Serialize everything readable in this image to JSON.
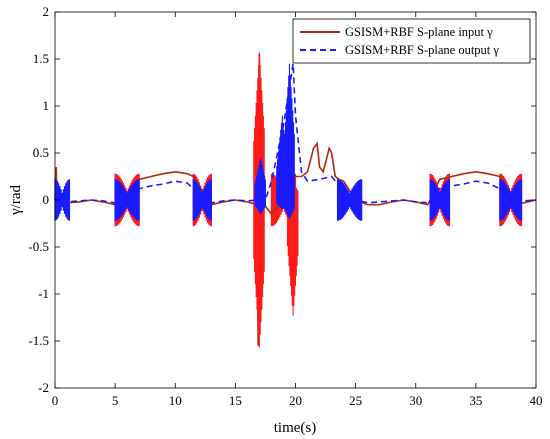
{
  "chart_data": {
    "type": "line",
    "xlabel": "time(s)",
    "ylabel": "γ/rad",
    "xlim": [
      0,
      40
    ],
    "ylim": [
      -2,
      2
    ],
    "x_ticks": [
      0,
      5,
      10,
      15,
      20,
      25,
      30,
      35,
      40
    ],
    "x_tick_labels": [
      "0",
      "5",
      "10",
      "15",
      "20",
      "25",
      "30",
      "35",
      "40"
    ],
    "y_ticks": [
      -2,
      -1.5,
      -1,
      -0.5,
      0,
      0.5,
      1,
      1.5,
      2
    ],
    "y_tick_labels": [
      "-2",
      "-1.5",
      "-1",
      "-0.5",
      "0",
      "0.5",
      "1",
      "1.5",
      "2"
    ],
    "grid": false,
    "legend_position": "top-right",
    "series": [
      {
        "name": "GSISM+RBF S-plane input γ",
        "color": "#b22a10",
        "chatter_color": "#ff1a1a",
        "style": "solid",
        "x": [
          0,
          0.1,
          0.2,
          0.4,
          1,
          2,
          3,
          4,
          5,
          5.5,
          7,
          8,
          9,
          10,
          11,
          11.5,
          13,
          14,
          15,
          16,
          16.8,
          16.9,
          17.0,
          17.2,
          17.4,
          18,
          19,
          19.5,
          20,
          20.5,
          21,
          21.5,
          21.8,
          22,
          22.3,
          22.8,
          23,
          23.3,
          23.6,
          24,
          25,
          26,
          27,
          28,
          29,
          30,
          31,
          32,
          33,
          34,
          35,
          36,
          37,
          38,
          39,
          40
        ],
        "y": [
          0,
          0.35,
          -0.2,
          0.05,
          -0.03,
          -0.02,
          0.0,
          -0.02,
          -0.05,
          -0.05,
          0.22,
          0.25,
          0.28,
          0.3,
          0.28,
          0.25,
          -0.05,
          -0.02,
          0.0,
          -0.02,
          -0.05,
          -1.55,
          1.55,
          -0.05,
          -0.05,
          -0.15,
          0.0,
          0.2,
          0.25,
          0.25,
          0.3,
          0.55,
          0.6,
          0.35,
          0.3,
          0.55,
          0.5,
          0.25,
          0.22,
          0.2,
          0.0,
          -0.05,
          -0.05,
          -0.02,
          0.0,
          -0.02,
          -0.05,
          0.22,
          0.25,
          0.28,
          0.3,
          0.28,
          0.25,
          -0.05,
          -0.03,
          0.0
        ],
        "chatter_bands": [
          [
            5,
            7
          ],
          [
            11.5,
            13
          ],
          [
            18,
            20
          ],
          [
            31.2,
            32.8
          ],
          [
            37,
            38.8
          ]
        ],
        "spikes": [
          {
            "x": 17.0,
            "min": -1.57,
            "max": 1.57
          },
          {
            "x": 19.8,
            "min": -1.23,
            "max": 0.2
          }
        ]
      },
      {
        "name": "GSISM+RBF S-plane output γ",
        "color": "#1a1aff",
        "style": "dashed",
        "x": [
          0,
          0.2,
          0.5,
          1,
          2,
          3,
          4,
          5,
          7,
          8,
          9,
          10,
          11,
          11.5,
          13,
          14,
          15,
          16,
          17,
          17.3,
          18,
          18.5,
          19,
          19.5,
          19.8,
          20,
          20.5,
          21,
          22,
          23,
          24,
          25,
          26,
          27,
          28,
          29,
          30,
          31,
          32,
          33,
          34,
          35,
          36,
          37,
          38,
          39,
          40
        ],
        "y": [
          0,
          0.1,
          0.0,
          -0.02,
          -0.01,
          0.0,
          -0.01,
          -0.03,
          0.12,
          0.15,
          0.17,
          0.2,
          0.18,
          0.12,
          -0.03,
          -0.01,
          0.0,
          -0.01,
          0.0,
          -0.08,
          0.2,
          0.5,
          0.8,
          1.2,
          1.45,
          0.9,
          0.3,
          0.2,
          0.22,
          0.25,
          0.1,
          0.0,
          -0.03,
          -0.02,
          -0.01,
          0.0,
          -0.02,
          -0.03,
          0.12,
          0.15,
          0.17,
          0.2,
          0.18,
          0.12,
          -0.03,
          -0.01,
          0.0
        ],
        "chatter_bands": [
          [
            0,
            1.2
          ],
          [
            5,
            7
          ],
          [
            11.5,
            13
          ],
          [
            23.5,
            25.5
          ],
          [
            31.2,
            32.8
          ],
          [
            37,
            38.8
          ]
        ],
        "spikes": [
          {
            "x": 17.1,
            "min": -0.15,
            "max": 0.45
          },
          {
            "x": 19.5,
            "min": -0.2,
            "max": 1.45
          },
          {
            "x": 18.9,
            "min": -0.1,
            "max": 0.9
          }
        ]
      }
    ]
  }
}
